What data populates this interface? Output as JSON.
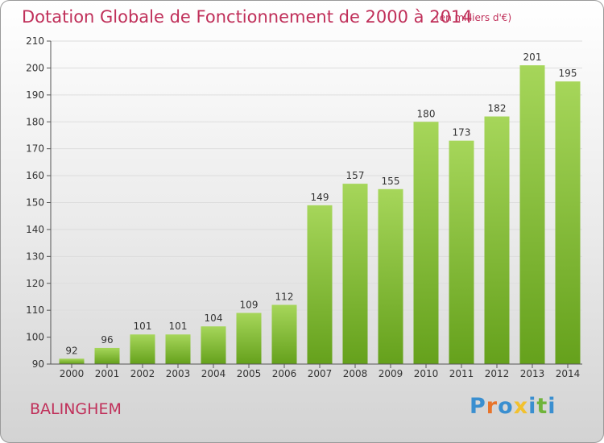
{
  "title": "Dotation Globale de Fonctionnement de 2000 à 2014",
  "subtitle": "(en milliers d'€)",
  "commune": "BALINGHEM",
  "logo": {
    "letters": [
      "P",
      "r",
      "o",
      "x",
      "i",
      "t",
      "i"
    ],
    "colors": [
      "#3a8fd0",
      "#e8742a",
      "#3a8fd0",
      "#f2c12e",
      "#3a8fd0",
      "#6fb43a",
      "#3a8fd0"
    ]
  },
  "colors": {
    "accent": "#c0305a",
    "bar_light": "#a6d65a",
    "bar_dark": "#65a11c"
  },
  "chart_data": {
    "type": "bar",
    "categories": [
      "2000",
      "2001",
      "2002",
      "2003",
      "2004",
      "2005",
      "2006",
      "2007",
      "2008",
      "2009",
      "2010",
      "2011",
      "2012",
      "2013",
      "2014"
    ],
    "values": [
      92,
      96,
      101,
      101,
      104,
      109,
      112,
      149,
      157,
      155,
      180,
      173,
      182,
      201,
      195
    ],
    "title": "Dotation Globale de Fonctionnement de 2000 à 2014",
    "unit": "(en milliers d'€)",
    "ylim": [
      90,
      210
    ],
    "yticks": [
      90,
      100,
      110,
      120,
      130,
      140,
      150,
      160,
      170,
      180,
      190,
      200,
      210
    ],
    "grid": true,
    "data_labels": true
  }
}
